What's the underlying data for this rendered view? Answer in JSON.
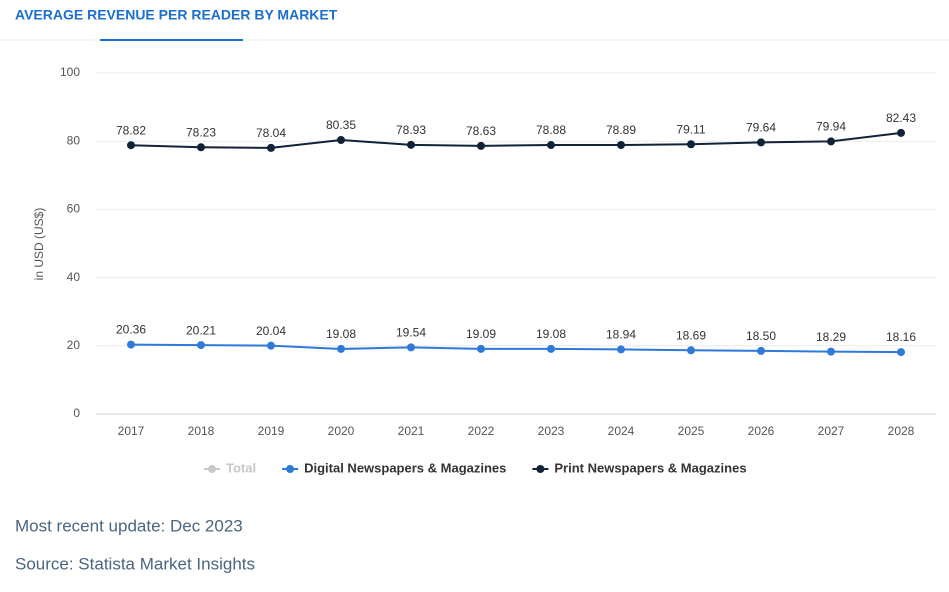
{
  "chart_data": {
    "type": "line",
    "title": "AVERAGE REVENUE PER READER BY MARKET",
    "ylabel": "in USD (US$)",
    "categories": [
      "2017",
      "2018",
      "2019",
      "2020",
      "2021",
      "2022",
      "2023",
      "2024",
      "2025",
      "2026",
      "2027",
      "2028"
    ],
    "series": [
      {
        "name": "Digital Newspapers & Magazines",
        "color": "#2f7ad9",
        "values": [
          20.36,
          20.21,
          20.04,
          19.08,
          19.54,
          19.09,
          19.08,
          18.94,
          18.69,
          18.5,
          18.29,
          18.16
        ],
        "value_labels": [
          "20.36",
          "20.21",
          "20.04",
          "19.08",
          "19.54",
          "19.09",
          "19.08",
          "18.94",
          "18.69",
          "18.50",
          "18.29",
          "18.16"
        ]
      },
      {
        "name": "Print Newspapers & Magazines",
        "color": "#0f2238",
        "values": [
          78.82,
          78.23,
          78.04,
          80.35,
          78.93,
          78.63,
          78.88,
          78.89,
          79.11,
          79.64,
          79.94,
          82.43
        ],
        "value_labels": [
          "78.82",
          "78.23",
          "78.04",
          "80.35",
          "78.93",
          "78.63",
          "78.88",
          "78.89",
          "79.11",
          "79.64",
          "79.94",
          "82.43"
        ]
      }
    ],
    "inactive_legend": [
      {
        "name": "Total",
        "color": "#c8c8c8"
      }
    ],
    "ylim": [
      0,
      100
    ],
    "yticks": [
      0,
      20,
      40,
      60,
      80,
      100
    ],
    "grid": true
  },
  "footer": {
    "update": "Most recent update: Dec 2023",
    "source": "Source: Statista Market Insights"
  }
}
